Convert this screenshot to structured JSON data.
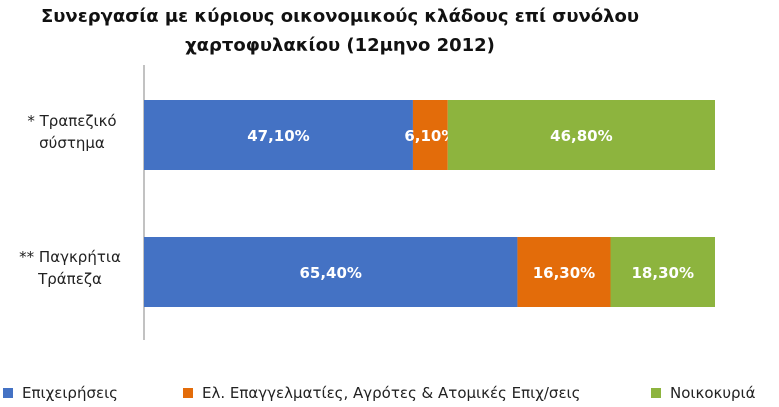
{
  "chart_data": {
    "type": "bar",
    "orientation": "horizontal",
    "stacked": true,
    "title_line1": "Συνεργασία με κύριους οικονομικούς κλάδους επί συνόλου",
    "title_line2": "χαρτοφυλακίου (12μηνο 2012)",
    "categories": [
      {
        "line1": "* Τραπεζικό",
        "line2": "σύστημα"
      },
      {
        "line1": "** Παγκρήτια",
        "line2": "Τράπεζα"
      }
    ],
    "series": [
      {
        "name": "Επιχειρήσεις",
        "color": "#4472C4",
        "values": [
          47.1,
          65.4
        ],
        "labels": [
          "47,10%",
          "65,40%"
        ]
      },
      {
        "name": "Ελ. Επαγγελματίες, Αγρότες & Ατομικές Επιχ/σεις",
        "color": "#E36C0A",
        "values": [
          6.1,
          16.3
        ],
        "labels": [
          "6,10%",
          "16,30%"
        ]
      },
      {
        "name": "Νοικοκυριά",
        "color": "#8DB43E",
        "values": [
          46.8,
          18.3
        ],
        "labels": [
          "46,80%",
          "18,30%"
        ]
      }
    ],
    "xlim": [
      0,
      100
    ],
    "grid": false,
    "legend_position": "bottom"
  }
}
